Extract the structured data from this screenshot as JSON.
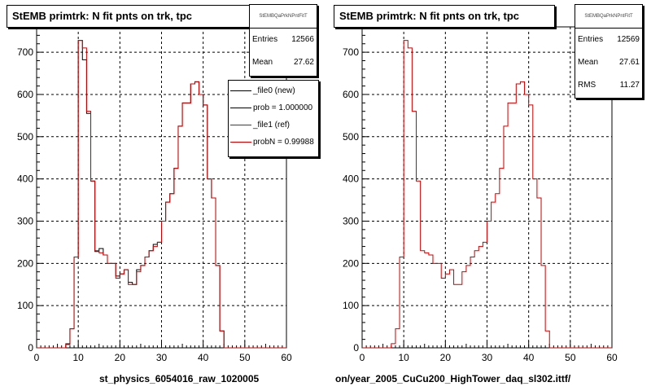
{
  "chart_data": [
    {
      "type": "line",
      "title": "StEMB primtrk: N fit pnts on trk, tpc",
      "xlabel": "st_physics_6054016_raw_1020005",
      "ylabel": "",
      "xlim": [
        0,
        60
      ],
      "ylim": [
        0,
        760
      ],
      "xticks": [
        "0",
        "10",
        "20",
        "30",
        "40",
        "50",
        "60"
      ],
      "yticks": [
        "0",
        "100",
        "200",
        "300",
        "400",
        "500",
        "600",
        "700"
      ],
      "grid": true,
      "stats": {
        "name": "StEMBQaPrkNPntFitT",
        "entries_label": "Entries",
        "entries": "12566",
        "mean_label": "Mean",
        "mean": "27.62"
      },
      "legend": {
        "position": "top-right",
        "entries": [
          {
            "label": "_file0 (new)",
            "color": "#000000"
          },
          {
            "label": "prob = 1.000000",
            "color": "#000000"
          },
          {
            "label": "_file1 (ref)",
            "color": "#cc0000"
          },
          {
            "label": "probN = 0.99988",
            "color": "#cc0000"
          }
        ]
      },
      "series": [
        {
          "name": "_file0 (new)",
          "color": "#000000",
          "values": [
            0,
            0,
            0,
            0,
            0,
            0,
            0,
            8,
            45,
            215,
            728,
            682,
            555,
            395,
            228,
            235,
            220,
            200,
            200,
            170,
            175,
            185,
            155,
            150,
            185,
            195,
            215,
            230,
            245,
            250,
            300,
            345,
            365,
            425,
            525,
            580,
            580,
            625,
            630,
            600,
            575,
            400,
            355,
            195,
            40,
            0,
            0,
            0,
            0,
            0,
            0,
            0,
            0,
            0,
            0,
            0,
            0,
            0,
            0,
            0
          ]
        },
        {
          "name": "_file1 (ref)",
          "color": "#cc0000",
          "values": [
            0,
            0,
            0,
            0,
            0,
            0,
            0,
            10,
            45,
            215,
            728,
            710,
            560,
            395,
            230,
            225,
            220,
            200,
            200,
            165,
            175,
            185,
            150,
            150,
            180,
            195,
            215,
            230,
            240,
            250,
            300,
            345,
            365,
            425,
            525,
            580,
            580,
            625,
            630,
            600,
            575,
            400,
            355,
            195,
            40,
            0,
            0,
            0,
            0,
            0,
            0,
            0,
            0,
            0,
            0,
            0,
            0,
            0,
            0,
            0
          ]
        }
      ]
    },
    {
      "type": "line",
      "title": "StEMB primtrk: N fit pnts on trk, tpc",
      "xlabel": "on/year_2005_CuCu200_HighTower_daq_sl302.ittf/",
      "ylabel": "",
      "xlim": [
        0,
        60
      ],
      "ylim": [
        0,
        760
      ],
      "xticks": [
        "0",
        "10",
        "20",
        "30",
        "40",
        "50",
        "60"
      ],
      "yticks": [
        "0",
        "100",
        "200",
        "300",
        "400",
        "500",
        "600",
        "700"
      ],
      "grid": true,
      "stats": {
        "name": "StEMBQaPrkNPntFitT",
        "entries_label": "Entries",
        "entries": "12569",
        "mean_label": "Mean",
        "mean": "27.61",
        "rms_label": "RMS",
        "rms": "11.27"
      },
      "series": [
        {
          "name": "",
          "color": "#cc0000",
          "values": [
            0,
            0,
            0,
            0,
            0,
            0,
            0,
            10,
            45,
            215,
            728,
            710,
            560,
            395,
            230,
            225,
            220,
            200,
            200,
            165,
            175,
            185,
            150,
            150,
            180,
            195,
            215,
            230,
            240,
            250,
            300,
            345,
            365,
            425,
            525,
            580,
            580,
            625,
            630,
            600,
            575,
            400,
            355,
            195,
            40,
            0,
            0,
            0,
            0,
            0,
            0,
            0,
            0,
            0,
            0,
            0,
            0,
            0,
            0,
            0
          ]
        }
      ]
    }
  ]
}
